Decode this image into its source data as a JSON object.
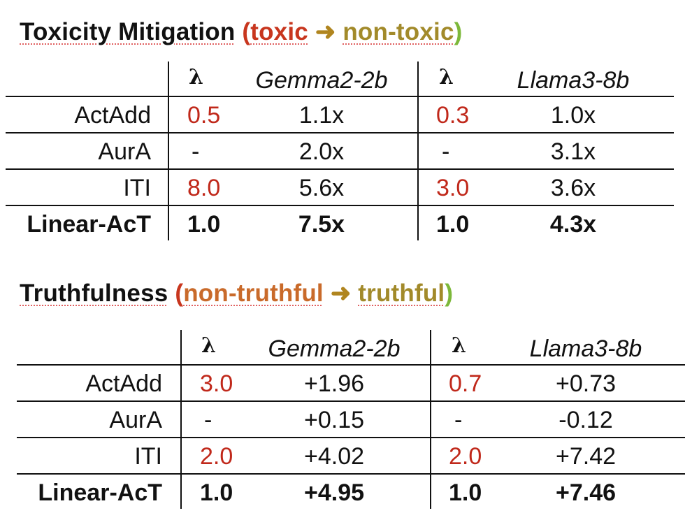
{
  "sections": [
    {
      "title": "Toxicity Mitigation",
      "paren_open": "(",
      "from": "toxic",
      "arrow": "➜",
      "to": "non-toxic",
      "paren_close": ")",
      "columns": [
        "λ",
        "Gemma2-2b",
        "λ",
        "Llama3-8b"
      ],
      "rows": [
        {
          "method": "ActAdd",
          "lambda1": "0.5",
          "gemma": "1.1x",
          "lambda2": "0.3",
          "llama": "1.0x"
        },
        {
          "method": "AurA",
          "lambda1": "-",
          "gemma": "2.0x",
          "lambda2": "-",
          "llama": "3.1x"
        },
        {
          "method": "ITI",
          "lambda1": "8.0",
          "gemma": "5.6x",
          "lambda2": "3.0",
          "llama": "3.6x"
        },
        {
          "method": "Linear-AcT",
          "lambda1": "1.0",
          "gemma": "7.5x",
          "lambda2": "1.0",
          "llama": "4.3x"
        }
      ]
    },
    {
      "title": "Truthfulness",
      "paren_open": "(",
      "from": "non-truthful",
      "arrow": "➜",
      "to": "truthful",
      "paren_close": ")",
      "columns": [
        "λ",
        "Gemma2-2b",
        "λ",
        "Llama3-8b"
      ],
      "rows": [
        {
          "method": "ActAdd",
          "lambda1": "3.0",
          "gemma": "+1.96",
          "lambda2": "0.7",
          "llama": "+0.73"
        },
        {
          "method": "AurA",
          "lambda1": "-",
          "gemma": "+0.15",
          "lambda2": "-",
          "llama": "-0.12"
        },
        {
          "method": "ITI",
          "lambda1": "2.0",
          "gemma": "+4.02",
          "lambda2": "2.0",
          "llama": "+7.42"
        },
        {
          "method": "Linear-AcT",
          "lambda1": "1.0",
          "gemma": "+4.95",
          "lambda2": "1.0",
          "llama": "+7.46"
        }
      ]
    }
  ]
}
